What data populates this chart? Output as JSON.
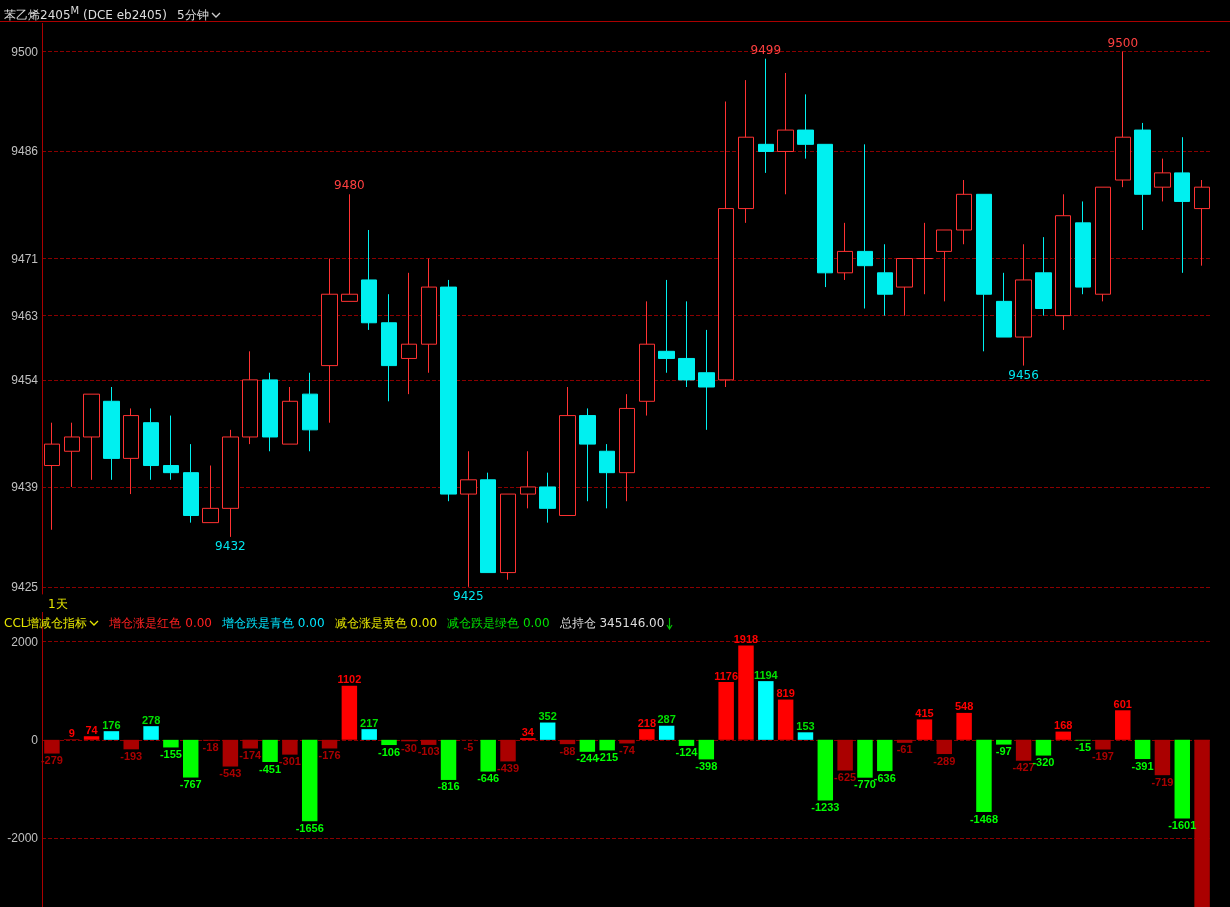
{
  "chart_data": [
    {
      "type": "candlestick",
      "title": "苯乙烯2405$^{M}$ (DCE eb2405)",
      "subtitle": "5分钟",
      "categories": [
        null,
        null,
        null,
        null,
        null,
        null,
        null,
        null,
        null,
        null,
        null,
        null,
        null,
        null,
        null,
        null,
        null,
        null,
        null,
        null,
        null,
        null,
        null,
        null,
        null,
        null,
        null,
        null,
        null,
        null,
        null,
        null,
        null,
        null,
        null,
        null,
        null,
        null,
        null,
        null,
        null,
        null,
        null,
        null,
        null,
        null,
        null,
        null,
        null,
        null,
        null,
        null,
        null,
        null,
        null,
        null,
        null,
        null,
        null
      ],
      "ohlc": [
        [
          9442,
          9448,
          9433,
          9445
        ],
        [
          9444,
          9448,
          9439,
          9446
        ],
        [
          9446,
          9452,
          9440,
          9452
        ],
        [
          9451,
          9453,
          9440,
          9443
        ],
        [
          9443,
          9450,
          9438,
          9449
        ],
        [
          9448,
          9450,
          9440,
          9442
        ],
        [
          9442,
          9449,
          9440,
          9441
        ],
        [
          9441,
          9445,
          9434,
          9435
        ],
        [
          9434,
          9442,
          9434,
          9436
        ],
        [
          9436,
          9447,
          9432,
          9446
        ],
        [
          9446,
          9458,
          9445,
          9454
        ],
        [
          9454,
          9455,
          9444,
          9446
        ],
        [
          9445,
          9453,
          9445,
          9451
        ],
        [
          9452,
          9455,
          9444,
          9447
        ],
        [
          9456,
          9471,
          9448,
          9466
        ],
        [
          9465,
          9480,
          9465,
          9466
        ],
        [
          9468,
          9475,
          9461,
          9462
        ],
        [
          9462,
          9466,
          9451,
          9456
        ],
        [
          9457,
          9469,
          9452,
          9459
        ],
        [
          9459,
          9471,
          9455,
          9467
        ],
        [
          9467,
          9468,
          9437,
          9438
        ],
        [
          9438,
          9444,
          9425,
          9440
        ],
        [
          9440,
          9441,
          9427,
          9427
        ],
        [
          9427,
          9438,
          9426,
          9438
        ],
        [
          9438,
          9444,
          9436,
          9439
        ],
        [
          9439,
          9441,
          9434,
          9436
        ],
        [
          9435,
          9453,
          9435,
          9449
        ],
        [
          9449,
          9450,
          9437,
          9445
        ],
        [
          9444,
          9445,
          9436,
          9441
        ],
        [
          9441,
          9452,
          9437,
          9450
        ],
        [
          9451,
          9465,
          9449,
          9459
        ],
        [
          9458,
          9468,
          9455,
          9457
        ],
        [
          9457,
          9465,
          9453,
          9454
        ],
        [
          9455,
          9461,
          9447,
          9453
        ],
        [
          9454,
          9493,
          9453,
          9478
        ],
        [
          9478,
          9496,
          9476,
          9488
        ],
        [
          9487,
          9499,
          9483,
          9486
        ],
        [
          9486,
          9497,
          9480,
          9489
        ],
        [
          9489,
          9494,
          9485,
          9487
        ],
        [
          9487,
          9487,
          9467,
          9469
        ],
        [
          9469,
          9476,
          9468,
          9472
        ],
        [
          9472,
          9487,
          9464,
          9470
        ],
        [
          9469,
          9473,
          9463,
          9466
        ],
        [
          9467,
          9471,
          9463,
          9471
        ],
        [
          9471,
          9476,
          9466,
          9471
        ],
        [
          9472,
          9475,
          9465,
          9475
        ],
        [
          9475,
          9482,
          9473,
          9480
        ],
        [
          9480,
          9480,
          9458,
          9466
        ],
        [
          9465,
          9469,
          9460,
          9460
        ],
        [
          9460,
          9473,
          9456,
          9468
        ],
        [
          9469,
          9474,
          9463,
          9464
        ],
        [
          9463,
          9480,
          9461,
          9477
        ],
        [
          9476,
          9479,
          9466,
          9467
        ],
        [
          9466,
          9481,
          9465,
          9481
        ],
        [
          9482,
          9500,
          9481,
          9488
        ],
        [
          9489,
          9490,
          9475,
          9480
        ],
        [
          9481,
          9485,
          9479,
          9483
        ],
        [
          9483,
          9488,
          9469,
          9479
        ],
        [
          9478,
          9482,
          9470,
          9481
        ]
      ],
      "ylim": [
        9424,
        9504
      ],
      "yticks": [
        9500,
        9486,
        9471,
        9463,
        9454,
        9439,
        9425
      ],
      "grid": "y",
      "tick_labels": "y",
      "annotations": [
        "1天",
        {
          "text": "9480",
          "y": 9480
        },
        {
          "text": "9432",
          "y": 9432
        },
        {
          "text": "9425",
          "y": 9425
        },
        {
          "text": "9499",
          "y": 9499
        },
        {
          "text": "9500",
          "y": 9500
        },
        {
          "text": "9456",
          "y": 9456
        }
      ]
    },
    {
      "type": "bar",
      "title": "CCL增减仓指标",
      "categories": [
        null,
        null,
        null,
        null,
        null,
        null,
        null,
        null,
        null,
        null,
        null,
        null,
        null,
        null,
        null,
        null,
        null,
        null,
        null,
        null,
        null,
        null,
        null,
        null,
        null,
        null,
        null,
        null,
        null,
        null,
        null,
        null,
        null,
        null,
        null,
        null,
        null,
        null,
        null,
        null,
        null,
        null,
        null,
        null,
        null,
        null,
        null,
        null,
        null,
        null,
        null,
        null,
        null,
        null,
        null,
        null,
        null,
        null,
        null
      ],
      "values": [
        -279,
        9,
        74,
        176,
        -193,
        278,
        -155,
        -767,
        -18,
        -543,
        -174,
        -451,
        -301,
        -1656,
        -176,
        1102,
        217,
        -106,
        -30,
        -103,
        -816,
        -5,
        -646,
        -439,
        34,
        352,
        -88,
        -244,
        -215,
        -74,
        218,
        287,
        -124,
        -398,
        1176,
        1918,
        1194,
        819,
        153,
        -1233,
        -625,
        -770,
        -636,
        -61,
        415,
        -289,
        548,
        -1468,
        -97,
        -427,
        -320,
        168,
        -15,
        -197,
        601,
        -391,
        -719,
        -1601,
        -3400
      ],
      "value_labels": [
        "-279",
        "9",
        "74",
        "176",
        "-193",
        "278",
        "-155",
        "-767",
        "-18",
        "-543",
        "-174",
        "-451",
        "-301",
        "-1656",
        "-176",
        "1102",
        "217",
        "-106",
        "-30",
        "-103",
        "-816",
        "-5",
        "-646",
        "-439",
        "34",
        "352",
        "-88",
        "-244",
        "-215",
        "-74",
        "218",
        "287",
        "-124",
        "-398",
        "1176",
        "1918",
        "1194",
        "819",
        "153",
        "-1233",
        "-625",
        "-770",
        "-636",
        "-61",
        "415",
        "-289",
        "548",
        "-1468",
        "-97",
        "-427",
        "-320",
        "168",
        "-15",
        "-197",
        "601",
        "-391",
        "-719",
        "-1601",
        null
      ],
      "colors": [
        "#aa0000",
        "#ff0000",
        "#ff0000",
        "#00ffff",
        "#aa0000",
        "#00ffff",
        "#00ff00",
        "#00ff00",
        "#aa0000",
        "#aa0000",
        "#aa0000",
        "#00ff00",
        "#aa0000",
        "#00ff00",
        "#aa0000",
        "#ff0000",
        "#00ffff",
        "#00ff00",
        "#aa0000",
        "#aa0000",
        "#00ff00",
        "#aa0000",
        "#00ff00",
        "#aa0000",
        "#ff0000",
        "#00ffff",
        "#aa0000",
        "#00ff00",
        "#00ff00",
        "#aa0000",
        "#ff0000",
        "#00ffff",
        "#00ff00",
        "#00ff00",
        "#ff0000",
        "#ff0000",
        "#00ffff",
        "#ff0000",
        "#00ffff",
        "#00ff00",
        "#aa0000",
        "#00ff00",
        "#00ff00",
        "#aa0000",
        "#ff0000",
        "#aa0000",
        "#ff0000",
        "#00ff00",
        "#00ff00",
        "#aa0000",
        "#00ff00",
        "#ff0000",
        "#00ff00",
        "#aa0000",
        "#ff0000",
        "#00ff00",
        "#aa0000",
        "#00ff00",
        "#aa0000"
      ],
      "ylim": [
        -3400,
        2600
      ],
      "yticks": [
        2000,
        0,
        -2000
      ],
      "grid": "y",
      "tick_labels": "y",
      "annotations": [
        "增仓涨是红色 0.00",
        "增仓跌是青色 0.00",
        "减仓涨是黄色 0.00",
        "减仓跌是绿色 0.00",
        "总持仓 345146.00"
      ]
    }
  ]
}
